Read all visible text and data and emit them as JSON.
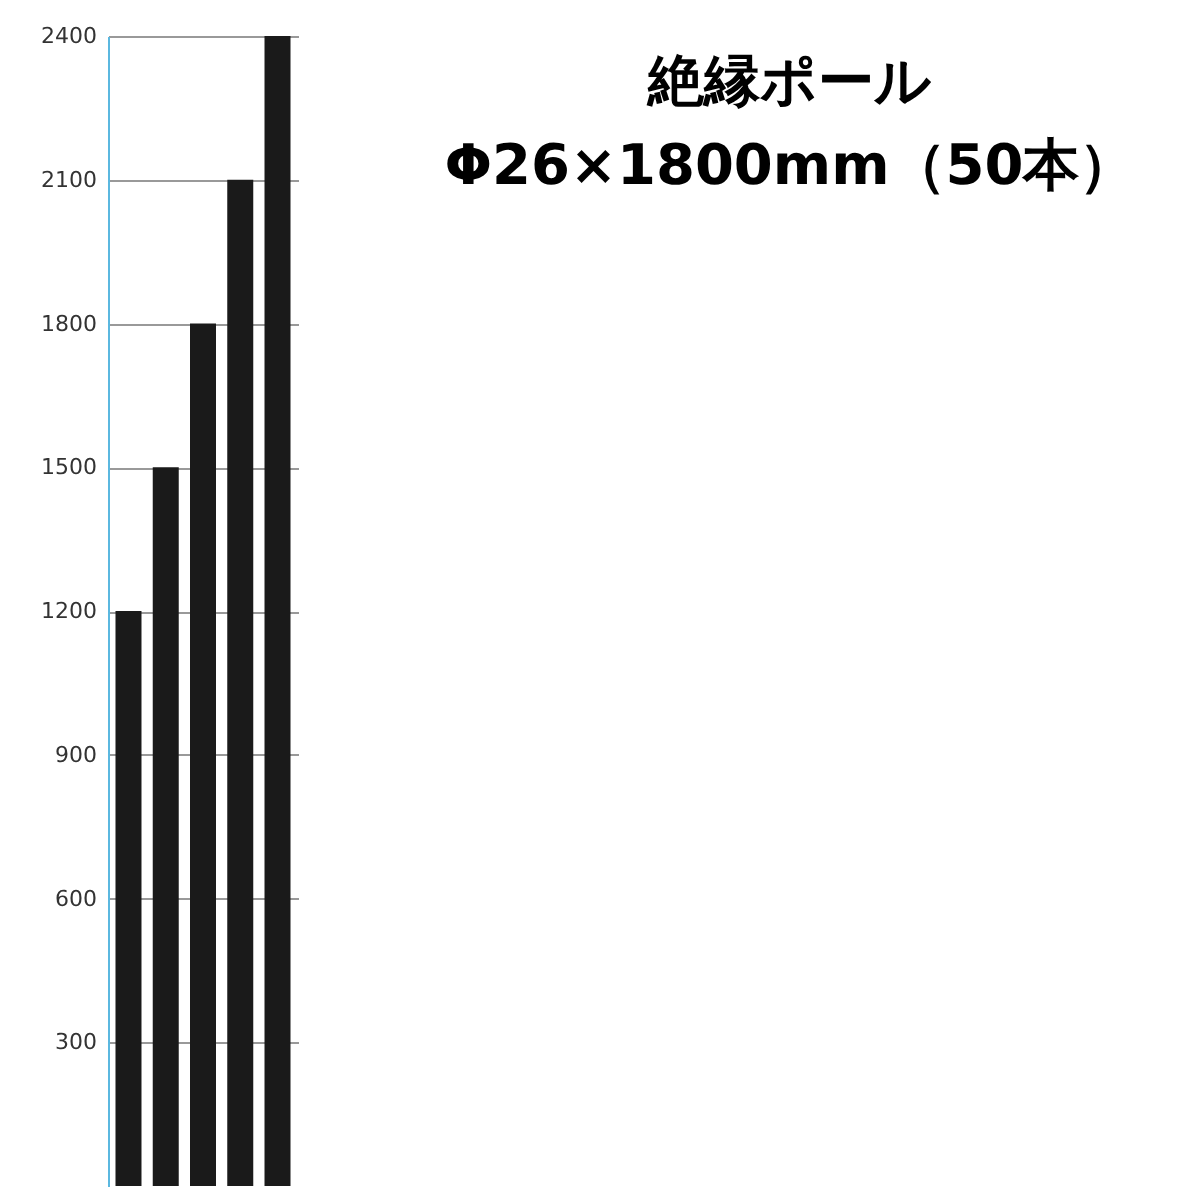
{
  "chart_data": {
    "type": "bar",
    "title": "絶縁ポール",
    "subtitle": "Φ26×1800mm（50本）",
    "categories": [
      null,
      null,
      null,
      null,
      null
    ],
    "values": [
      1200,
      1500,
      1800,
      2100,
      2400
    ],
    "color": "#1a1a1a",
    "ylim": [
      0,
      2400
    ],
    "yticks": [
      300,
      600,
      900,
      1200,
      1500,
      1800,
      2100,
      2400
    ],
    "grid": "y"
  }
}
